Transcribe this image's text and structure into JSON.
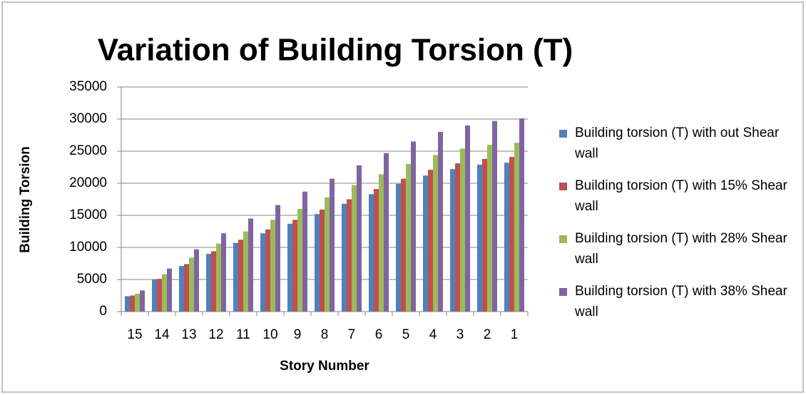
{
  "chart_data": {
    "type": "bar",
    "title": "Variation of Building Torsion (T)",
    "x_label": "Story Number",
    "y_label": "Building Torsion",
    "categories": [
      "15",
      "14",
      "13",
      "12",
      "11",
      "10",
      "9",
      "8",
      "7",
      "6",
      "5",
      "4",
      "3",
      "2",
      "1"
    ],
    "series": [
      {
        "name": "Building torsion (T) with out Shear wall",
        "color": "#4f81bd",
        "values": [
          2400,
          5000,
          7100,
          9000,
          10700,
          12200,
          13700,
          15200,
          16800,
          18300,
          19900,
          21200,
          22200,
          22900,
          23200
        ]
      },
      {
        "name": "Building torsion (T) with 15% Shear wall",
        "color": "#c0504d",
        "values": [
          2500,
          5100,
          7400,
          9400,
          11200,
          12800,
          14300,
          15900,
          17500,
          19100,
          20700,
          22100,
          23100,
          23800,
          24100
        ]
      },
      {
        "name": "Building torsion (T) with 28% Shear wall",
        "color": "#9bbb59",
        "values": [
          2800,
          5800,
          8400,
          10600,
          12500,
          14300,
          16000,
          17800,
          19700,
          21400,
          23000,
          24400,
          25400,
          26000,
          26300
        ]
      },
      {
        "name": "Building torsion (T) with 38% Shear wall",
        "color": "#8064a2",
        "values": [
          3300,
          6700,
          9700,
          12200,
          14500,
          16600,
          18700,
          20700,
          22800,
          24700,
          26500,
          28000,
          29000,
          29700,
          30100
        ]
      }
    ],
    "ylim": [
      0,
      35000
    ],
    "yticks": [
      0,
      5000,
      10000,
      15000,
      20000,
      25000,
      30000,
      35000
    ],
    "grid": true,
    "legend": "right"
  }
}
